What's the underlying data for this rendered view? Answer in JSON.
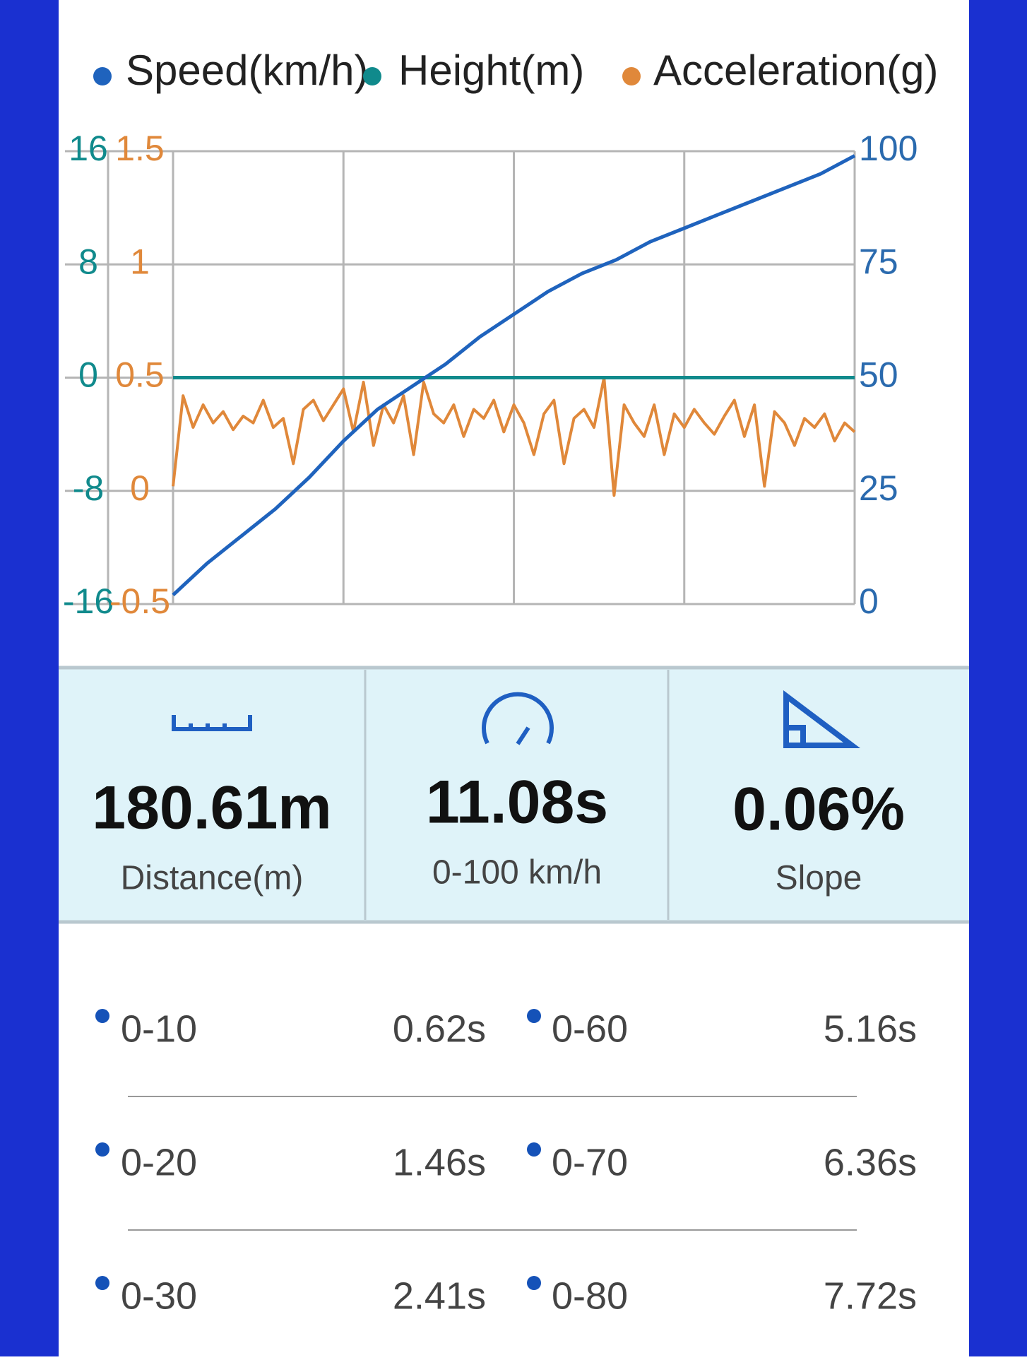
{
  "chart_data": {
    "type": "line",
    "series": [
      {
        "name": "Speed(km/h)",
        "color": "#1f63bd",
        "axis": "y2",
        "values": [
          2,
          9,
          15,
          21,
          28,
          36,
          43,
          48,
          53,
          59,
          64,
          69,
          73,
          76,
          80,
          83,
          86,
          89,
          92,
          95,
          99
        ]
      },
      {
        "name": "Height(m)",
        "color": "#108a8c",
        "axis": "y",
        "values": [
          0,
          0,
          0,
          0,
          0,
          0,
          0,
          0,
          0,
          0,
          0
        ]
      },
      {
        "name": "Acceleration(g)",
        "color": "#e0883a",
        "axis": "y3",
        "values": [
          0.02,
          0.42,
          0.28,
          0.38,
          0.3,
          0.35,
          0.27,
          0.33,
          0.3,
          0.4,
          0.28,
          0.32,
          0.12,
          0.36,
          0.4,
          0.31,
          0.38,
          0.45,
          0.26,
          0.48,
          0.2,
          0.38,
          0.3,
          0.42,
          0.16,
          0.48,
          0.34,
          0.3,
          0.38,
          0.24,
          0.36,
          0.32,
          0.4,
          0.26,
          0.38,
          0.3,
          0.16,
          0.34,
          0.4,
          0.12,
          0.32,
          0.36,
          0.28,
          0.5,
          -0.02,
          0.38,
          0.3,
          0.24,
          0.38,
          0.16,
          0.34,
          0.28,
          0.36,
          0.3,
          0.25,
          0.33,
          0.4,
          0.24,
          0.38,
          0.02,
          0.35,
          0.3,
          0.2,
          0.32,
          0.28,
          0.34,
          0.22,
          0.3,
          0.26
        ]
      }
    ],
    "ylim": [
      -16,
      16
    ],
    "yticks": [
      -16,
      -8,
      0,
      8,
      16
    ],
    "y3lim": [
      -0.5,
      1.5
    ],
    "y3ticks": [
      -0.5,
      0,
      0.5,
      1,
      1.5
    ],
    "y2lim": [
      0,
      100
    ],
    "y2ticks": [
      0,
      25,
      50,
      75,
      100
    ],
    "grid": true,
    "legend": "top"
  },
  "stats": [
    {
      "value": "180.61m",
      "label": "Distance(m)"
    },
    {
      "value": "11.08s",
      "label": "0-100 km/h"
    },
    {
      "value": "0.06%",
      "label": "Slope"
    }
  ],
  "splits": [
    {
      "range": "0-10",
      "time": "0.62s"
    },
    {
      "range": "0-20",
      "time": "1.46s"
    },
    {
      "range": "0-30",
      "time": "2.41s"
    },
    {
      "range": "0-60",
      "time": "5.16s"
    },
    {
      "range": "0-70",
      "time": "6.36s"
    },
    {
      "range": "0-80",
      "time": "7.72s"
    }
  ]
}
